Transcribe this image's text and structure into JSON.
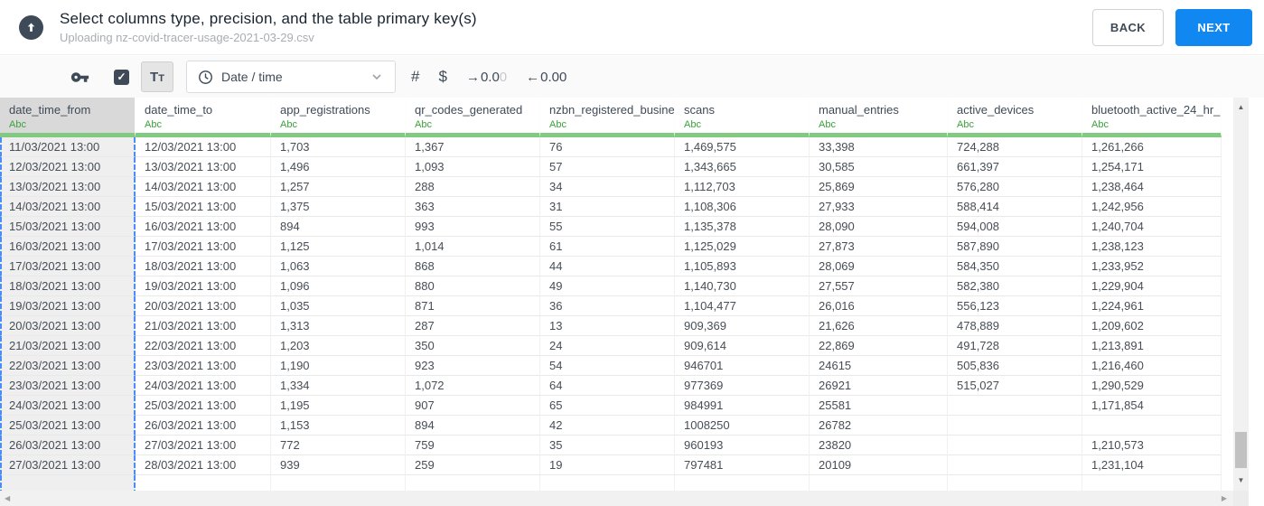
{
  "header": {
    "title": "Select columns type, precision, and the table primary key(s)",
    "subtitle": "Uploading nz-covid-tracer-usage-2021-03-29.csv",
    "back_label": "BACK",
    "next_label": "NEXT"
  },
  "toolbar": {
    "checkbox_glyph": "✓",
    "checkbox_checked": true,
    "text_type_label": "Tt",
    "type_selector": {
      "value": "Date / time"
    },
    "number_icon": "#",
    "currency_icon": "$",
    "increase_precision": {
      "arrow": "→",
      "dark": "0.0",
      "light": "0"
    },
    "decrease_precision": {
      "arrow": "←",
      "dark": "0.00",
      "light": ""
    }
  },
  "icons": {
    "upload": "upload-icon",
    "key": "key-icon",
    "clock": "clock-icon",
    "chevron_down": "chevron-down-icon",
    "scroll_up": "▲",
    "scroll_down": "▼",
    "scroll_left": "◀",
    "scroll_right": "▶"
  },
  "colors": {
    "accent_blue": "#1187f2",
    "type_green": "#3aa23a",
    "header_underline_green": "#82c982",
    "selection_dashed_blue": "#4a8df6",
    "selected_column_gray": "#d9d9d9"
  },
  "table": {
    "columns": [
      {
        "name": "date_time_from",
        "type": "Abc",
        "selected": true
      },
      {
        "name": "date_time_to",
        "type": "Abc",
        "selected": false
      },
      {
        "name": "app_registrations",
        "type": "Abc",
        "selected": false
      },
      {
        "name": "qr_codes_generated",
        "type": "Abc",
        "selected": false
      },
      {
        "name": "nzbn_registered_busine",
        "type": "Abc",
        "selected": false
      },
      {
        "name": "scans",
        "type": "Abc",
        "selected": false
      },
      {
        "name": "manual_entries",
        "type": "Abc",
        "selected": false
      },
      {
        "name": "active_devices",
        "type": "Abc",
        "selected": false
      },
      {
        "name": "bluetooth_active_24_hr_",
        "type": "Abc",
        "selected": false
      }
    ],
    "rows": [
      [
        "11/03/2021 13:00",
        "12/03/2021 13:00",
        "1,703",
        "1,367",
        "76",
        "1,469,575",
        "33,398",
        "724,288",
        "1,261,266"
      ],
      [
        "12/03/2021 13:00",
        "13/03/2021 13:00",
        "1,496",
        "1,093",
        "57",
        "1,343,665",
        "30,585",
        "661,397",
        "1,254,171"
      ],
      [
        "13/03/2021 13:00",
        "14/03/2021 13:00",
        "1,257",
        "288",
        "34",
        "1,112,703",
        "25,869",
        "576,280",
        "1,238,464"
      ],
      [
        "14/03/2021 13:00",
        "15/03/2021 13:00",
        "1,375",
        "363",
        "31",
        "1,108,306",
        "27,933",
        "588,414",
        "1,242,956"
      ],
      [
        "15/03/2021 13:00",
        "16/03/2021 13:00",
        "894",
        "993",
        "55",
        "1,135,378",
        "28,090",
        "594,008",
        "1,240,704"
      ],
      [
        "16/03/2021 13:00",
        "17/03/2021 13:00",
        "1,125",
        "1,014",
        "61",
        "1,125,029",
        "27,873",
        "587,890",
        "1,238,123"
      ],
      [
        "17/03/2021 13:00",
        "18/03/2021 13:00",
        "1,063",
        "868",
        "44",
        "1,105,893",
        "28,069",
        "584,350",
        "1,233,952"
      ],
      [
        "18/03/2021 13:00",
        "19/03/2021 13:00",
        "1,096",
        "880",
        "49",
        "1,140,730",
        "27,557",
        "582,380",
        "1,229,904"
      ],
      [
        "19/03/2021 13:00",
        "20/03/2021 13:00",
        "1,035",
        "871",
        "36",
        "1,104,477",
        "26,016",
        "556,123",
        "1,224,961"
      ],
      [
        "20/03/2021 13:00",
        "21/03/2021 13:00",
        "1,313",
        "287",
        "13",
        "909,369",
        "21,626",
        "478,889",
        "1,209,602"
      ],
      [
        "21/03/2021 13:00",
        "22/03/2021 13:00",
        "1,203",
        "350",
        "24",
        "909,614",
        "22,869",
        "491,728",
        "1,213,891"
      ],
      [
        "22/03/2021 13:00",
        "23/03/2021 13:00",
        "1,190",
        "923",
        "54",
        "946701",
        "24615",
        "505,836",
        "1,216,460"
      ],
      [
        "23/03/2021 13:00",
        "24/03/2021 13:00",
        "1,334",
        "1,072",
        "64",
        "977369",
        "26921",
        "515,027",
        "1,290,529"
      ],
      [
        "24/03/2021 13:00",
        "25/03/2021 13:00",
        "1,195",
        "907",
        "65",
        "984991",
        "25581",
        "",
        "1,171,854"
      ],
      [
        "25/03/2021 13:00",
        "26/03/2021 13:00",
        "1,153",
        "894",
        "42",
        "1008250",
        "26782",
        "",
        ""
      ],
      [
        "26/03/2021 13:00",
        "27/03/2021 13:00",
        "772",
        "759",
        "35",
        "960193",
        "23820",
        "",
        "1,210,573"
      ],
      [
        "27/03/2021 13:00",
        "28/03/2021 13:00",
        "939",
        "259",
        "19",
        "797481",
        "20109",
        "",
        "1,231,104"
      ]
    ]
  }
}
